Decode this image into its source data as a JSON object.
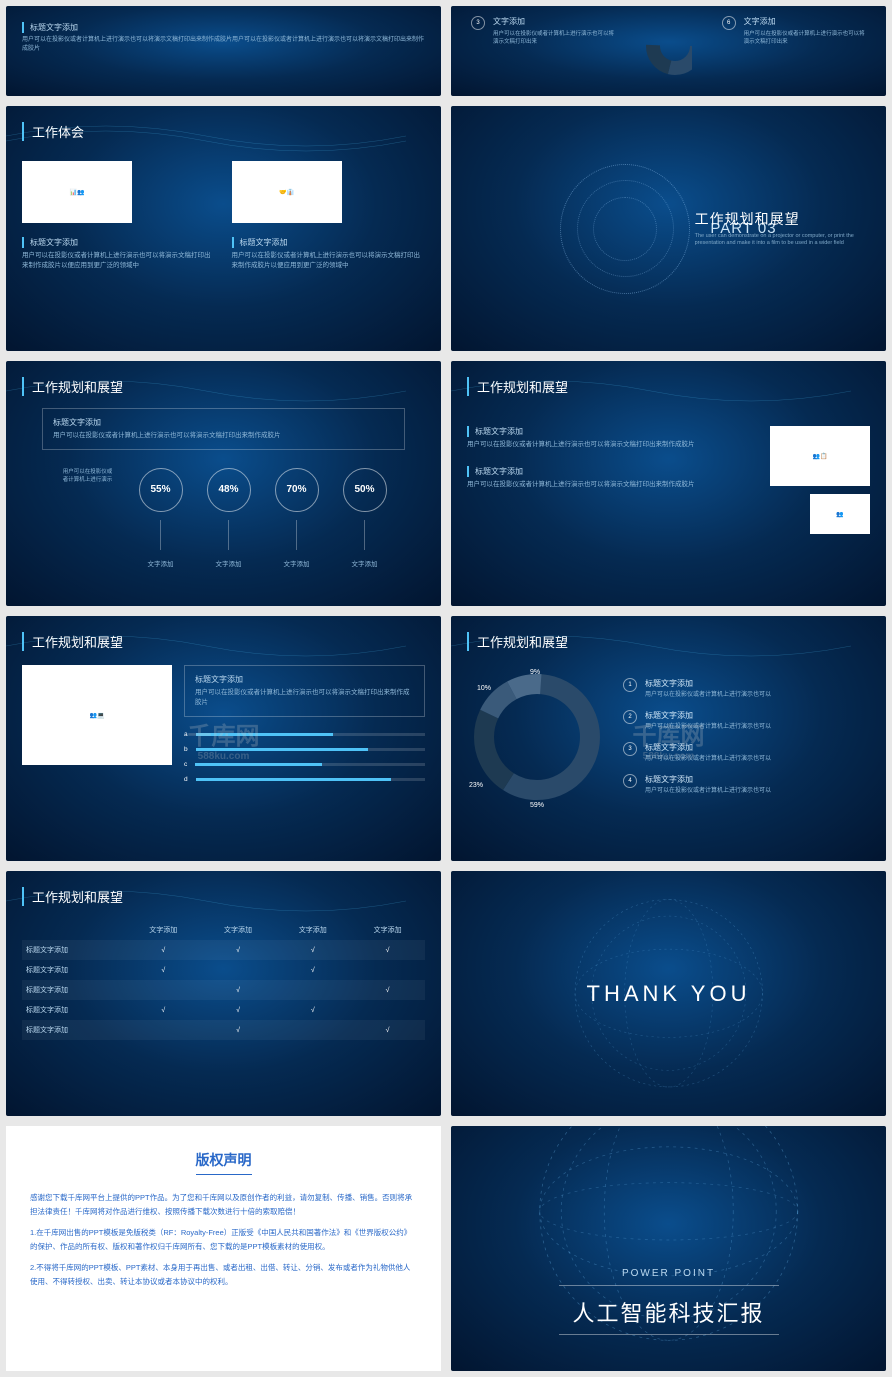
{
  "s1": {
    "heading": "标题文字添加",
    "body": "用户可以在投影仪或者计算机上进行演示也可以将演示文稿打印出来制作成胶片用户可以在投影仪或者计算机上进行演示也可以将演示文稿打印出来制作成胶片",
    "r3": {
      "num": "3",
      "t": "文字添加",
      "b": "用户可以在投影仪或者计算机上进行演示也可以将演示文稿打印出来"
    },
    "r6": {
      "num": "6",
      "t": "文字添加",
      "b": "用户可以在投影仪或者计算机上进行演示也可以将演示文稿打印出来"
    }
  },
  "s2": {
    "title": "工作体会",
    "h1": "标题文字添加",
    "b1": "用户可以在投影仪或者计算机上进行演示也可以将演示文稿打印出来制作成胶片以便应用到更广泛的领域中",
    "h2": "标题文字添加",
    "b2": "用户可以在投影仪或者计算机上进行演示也可以将演示文稿打印出来制作成胶片以便应用到更广泛的领域中"
  },
  "s3": {
    "part": "PART 03",
    "title": "工作规划和展望",
    "sub": "The user can demonstrate on a projector or computer, or print the presentation and make it into a film to be used in a wider field"
  },
  "s4": {
    "title": "工作规划和展望",
    "box_h": "标题文字添加",
    "box_b": "用户可以在投影仪或者计算机上进行演示也可以将演示文稿打印出来制作成胶片",
    "desc": "用户可以在投影仪或者计算机上进行演示",
    "stats": [
      {
        "v": "55%",
        "l": "文字添加"
      },
      {
        "v": "48%",
        "l": "文字添加"
      },
      {
        "v": "70%",
        "l": "文字添加"
      },
      {
        "v": "50%",
        "l": "文字添加"
      }
    ]
  },
  "s5": {
    "title": "工作规划和展望",
    "items": [
      {
        "h": "标题文字添加",
        "b": "用户可以在投影仪或者计算机上进行演示也可以将演示文稿打印出来制作成胶片"
      },
      {
        "h": "标题文字添加",
        "b": "用户可以在投影仪或者计算机上进行演示也可以将演示文稿打印出来制作成胶片"
      }
    ]
  },
  "s6": {
    "title": "工作规划和展望",
    "box_h": "标题文字添加",
    "box_b": "用户可以在投影仪或者计算机上进行演示也可以将演示文稿打印出来制作成胶片",
    "bars": [
      {
        "l": "a",
        "v": 60
      },
      {
        "l": "b",
        "v": 75
      },
      {
        "l": "c",
        "v": 55
      },
      {
        "l": "d",
        "v": 85
      }
    ]
  },
  "s7": {
    "title": "工作规划和展望",
    "donut": {
      "values": [
        59,
        23,
        10,
        9
      ],
      "colors": [
        "#2a4a6a",
        "#1e3a52",
        "#3a5a7a",
        "#4a6a8a"
      ],
      "labels": [
        "59%",
        "23%",
        "10%",
        "9%"
      ]
    },
    "list": [
      {
        "n": "1",
        "h": "标题文字添加",
        "b": "用户可以在投影仪或者计算机上进行演示也可以"
      },
      {
        "n": "2",
        "h": "标题文字添加",
        "b": "用户可以在投影仪或者计算机上进行演示也可以"
      },
      {
        "n": "3",
        "h": "标题文字添加",
        "b": "用户可以在投影仪或者计算机上进行演示也可以"
      },
      {
        "n": "4",
        "h": "标题文字添加",
        "b": "用户可以在投影仪或者计算机上进行演示也可以"
      }
    ]
  },
  "s8": {
    "title": "工作规划和展望",
    "cols": [
      "文字添加",
      "文字添加",
      "文字添加",
      "文字添加"
    ],
    "rows": [
      [
        "标题文字添加",
        "√",
        "√",
        "√",
        "√"
      ],
      [
        "标题文字添加",
        "√",
        "",
        "√",
        ""
      ],
      [
        "标题文字添加",
        "",
        "√",
        "",
        "√"
      ],
      [
        "标题文字添加",
        "√",
        "√",
        "√",
        ""
      ],
      [
        "标题文字添加",
        "",
        "√",
        "",
        "√"
      ]
    ]
  },
  "s9": {
    "text": "THANK YOU"
  },
  "s10": {
    "title": "版权声明",
    "p1": "感谢您下载千库网平台上提供的PPT作品。为了您和千库网以及原创作者的利益，请勿复制、传播、销售。否则将承担法律责任！千库网将对作品进行维权、按照传播下载次数进行十倍的索取赔偿！",
    "p2": "1.在千库网出售的PPT模板是免版税类（RF：Royalty-Free）正版受《中国人民共和国著作法》和《世界版权公约》的保护、作品的所有权、版权和著作权归千库网所有、您下载的是PPT模板素材的使用权。",
    "p3": "2.不得将千库网的PPT模板、PPT素材、本身用于再出售、或者出租、出借、转让、分销、发布或者作为礼物供他人使用、不得转授权、出卖、转让本协议或者本协议中的权利。"
  },
  "s11": {
    "pp": "POWER POINT",
    "title": "人工智能科技汇报"
  },
  "watermark": {
    "main": "千库网",
    "sub": "588ku.com"
  },
  "colors": {
    "accent": "#4fc3f7",
    "bg_dark": "#021530",
    "bg_mid": "#052a52",
    "bg_light": "#0a4d8c",
    "text_muted": "#8fb8d8",
    "link": "#2968c8"
  }
}
